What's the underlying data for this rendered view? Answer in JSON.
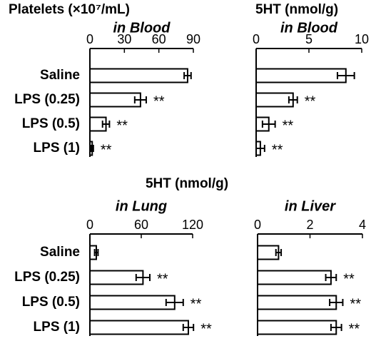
{
  "shared_title": "5HT (nmol/g)",
  "chart_data": [
    {
      "type": "bar",
      "orientation": "horizontal",
      "title": "Platelets (×10⁷/mL)",
      "subtitle": "in Blood",
      "categories": [
        "Saline",
        "LPS (0.25)",
        "LPS (0.5)",
        "LPS (1)"
      ],
      "values": [
        85,
        44,
        14,
        2
      ],
      "errors": [
        3,
        5,
        3,
        1
      ],
      "annotations": [
        null,
        "**",
        "**",
        "**"
      ],
      "xlim": [
        0,
        90
      ],
      "xticks": [
        0,
        30,
        60,
        90
      ],
      "color": "#ffffff"
    },
    {
      "type": "bar",
      "orientation": "horizontal",
      "title": "5HT (nmol/g)",
      "subtitle": "in Blood",
      "values": [
        8.5,
        3.5,
        1.2,
        0.4
      ],
      "errors": [
        0.8,
        0.4,
        0.6,
        0.4
      ],
      "annotations": [
        null,
        "**",
        "**",
        "**"
      ],
      "xlim": [
        0,
        10
      ],
      "xticks": [
        0,
        5,
        10
      ],
      "color": "#ffffff"
    },
    {
      "type": "bar",
      "orientation": "horizontal",
      "subtitle": "in Lung",
      "categories": [
        "Saline",
        "LPS (0.25)",
        "LPS (0.5)",
        "LPS (1)"
      ],
      "values": [
        7.5,
        62,
        99,
        115
      ],
      "errors": [
        2,
        8,
        10,
        6
      ],
      "annotations": [
        null,
        "**",
        "**",
        "**"
      ],
      "xlim": [
        0,
        120
      ],
      "xticks": [
        0,
        60,
        120
      ],
      "color": "#ffffff"
    },
    {
      "type": "bar",
      "orientation": "horizontal",
      "subtitle": "in Liver",
      "values": [
        0.8,
        2.8,
        3.0,
        3.0
      ],
      "errors": [
        0.1,
        0.2,
        0.25,
        0.2
      ],
      "annotations": [
        null,
        "**",
        "**",
        "**"
      ],
      "xlim": [
        0,
        4
      ],
      "xticks": [
        0,
        2,
        4
      ],
      "color": "#ffffff"
    }
  ]
}
